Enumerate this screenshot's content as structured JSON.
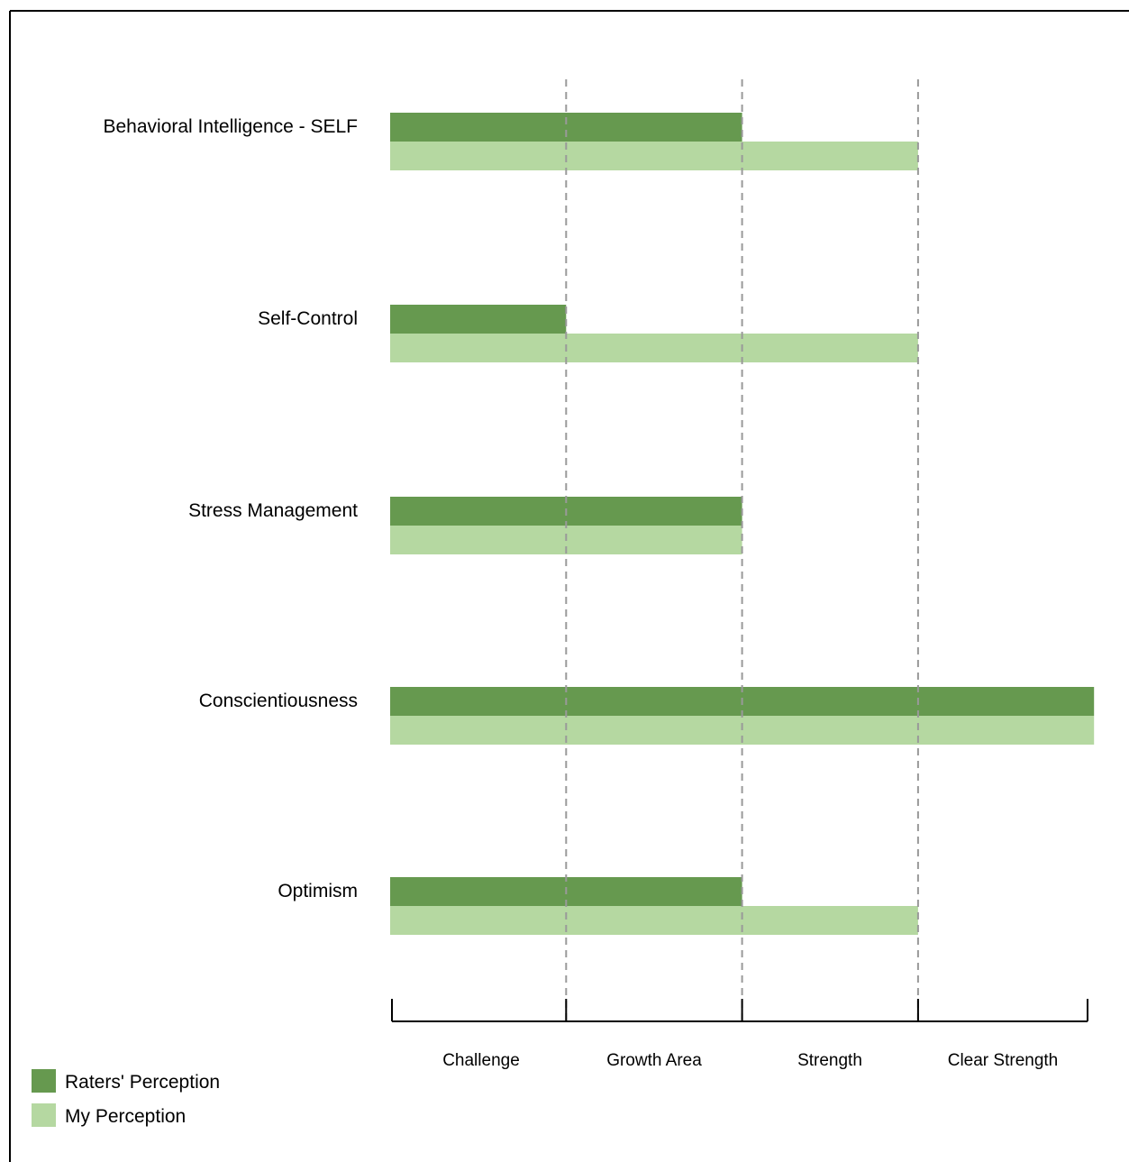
{
  "chart_data": {
    "type": "bar",
    "orientation": "horizontal",
    "categories": [
      "Behavioral Intelligence - SELF",
      "Self-Control",
      "Stress Management",
      "Conscientiousness",
      "Optimism"
    ],
    "series": [
      {
        "name": "Raters' Perception",
        "color": "#66994f",
        "values": [
          2,
          1,
          2,
          4,
          2
        ]
      },
      {
        "name": "My Perception",
        "color": "#b5d8a1",
        "values": [
          3,
          3,
          2,
          4,
          3
        ]
      }
    ],
    "xlim": [
      0,
      4
    ],
    "x_tick_labels": [
      "Challenge",
      "Growth Area",
      "Strength",
      "Clear Strength"
    ],
    "grid": "vertical dashed",
    "legend_position": "bottom-left",
    "colors": {
      "raters": "#66994f",
      "mine": "#b5d8a1",
      "grid": "#999999",
      "axis": "#000000"
    }
  }
}
